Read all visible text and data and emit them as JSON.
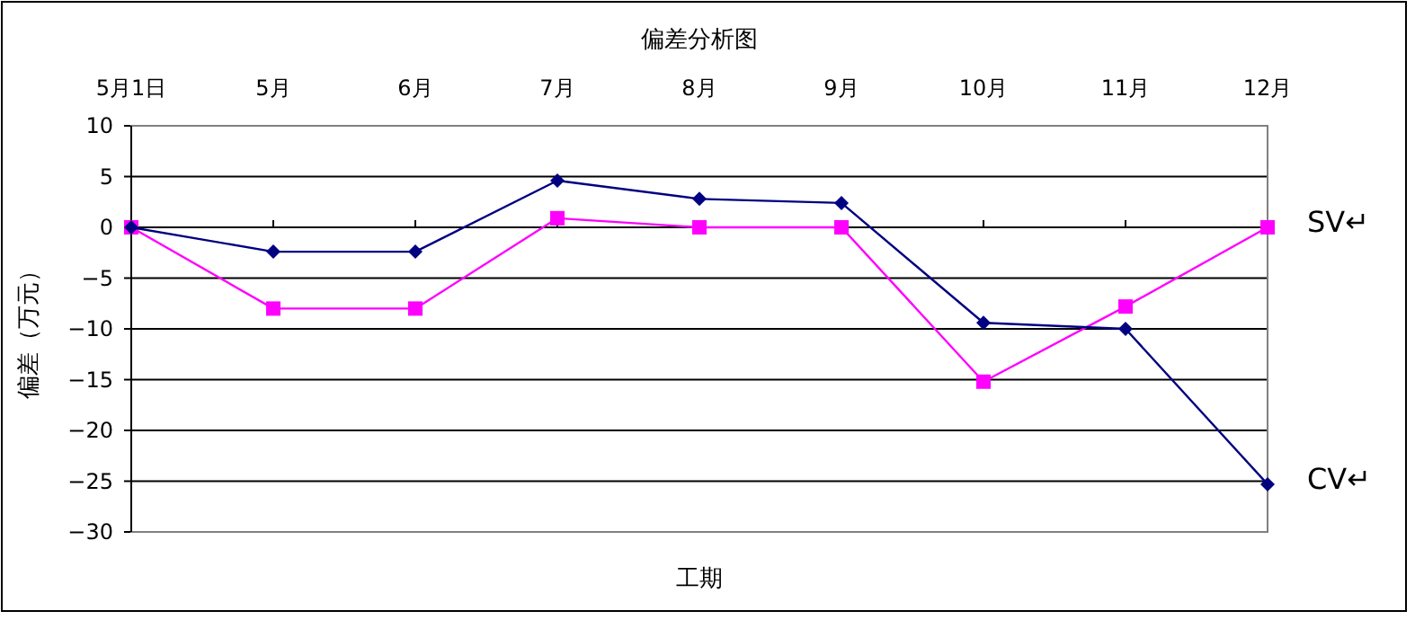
{
  "chart_data": {
    "type": "line",
    "title": "偏差分析图",
    "xlabel": "工期",
    "ylabel": "偏差（万元）",
    "categories": [
      "5月1日",
      "5月",
      "6月",
      "7月",
      "8月",
      "9月",
      "10月",
      "11月",
      "12月"
    ],
    "series": [
      {
        "name": "SV↵",
        "color": "#ff00ff",
        "marker": "square",
        "values": [
          0,
          -8.0,
          -8.0,
          0.9,
          0,
          0,
          -15.2,
          -7.8,
          0
        ]
      },
      {
        "name": "CV↵",
        "color": "#000080",
        "marker": "diamond",
        "values": [
          0,
          -2.4,
          -2.4,
          4.6,
          2.8,
          2.4,
          -9.4,
          -10.0,
          -25.3
        ]
      }
    ],
    "ylim": [
      -30,
      10
    ],
    "yticks": [
      -30,
      -25,
      -20,
      -15,
      -10,
      -5,
      0,
      5,
      10
    ],
    "grid": "y",
    "line_style": "solid"
  }
}
